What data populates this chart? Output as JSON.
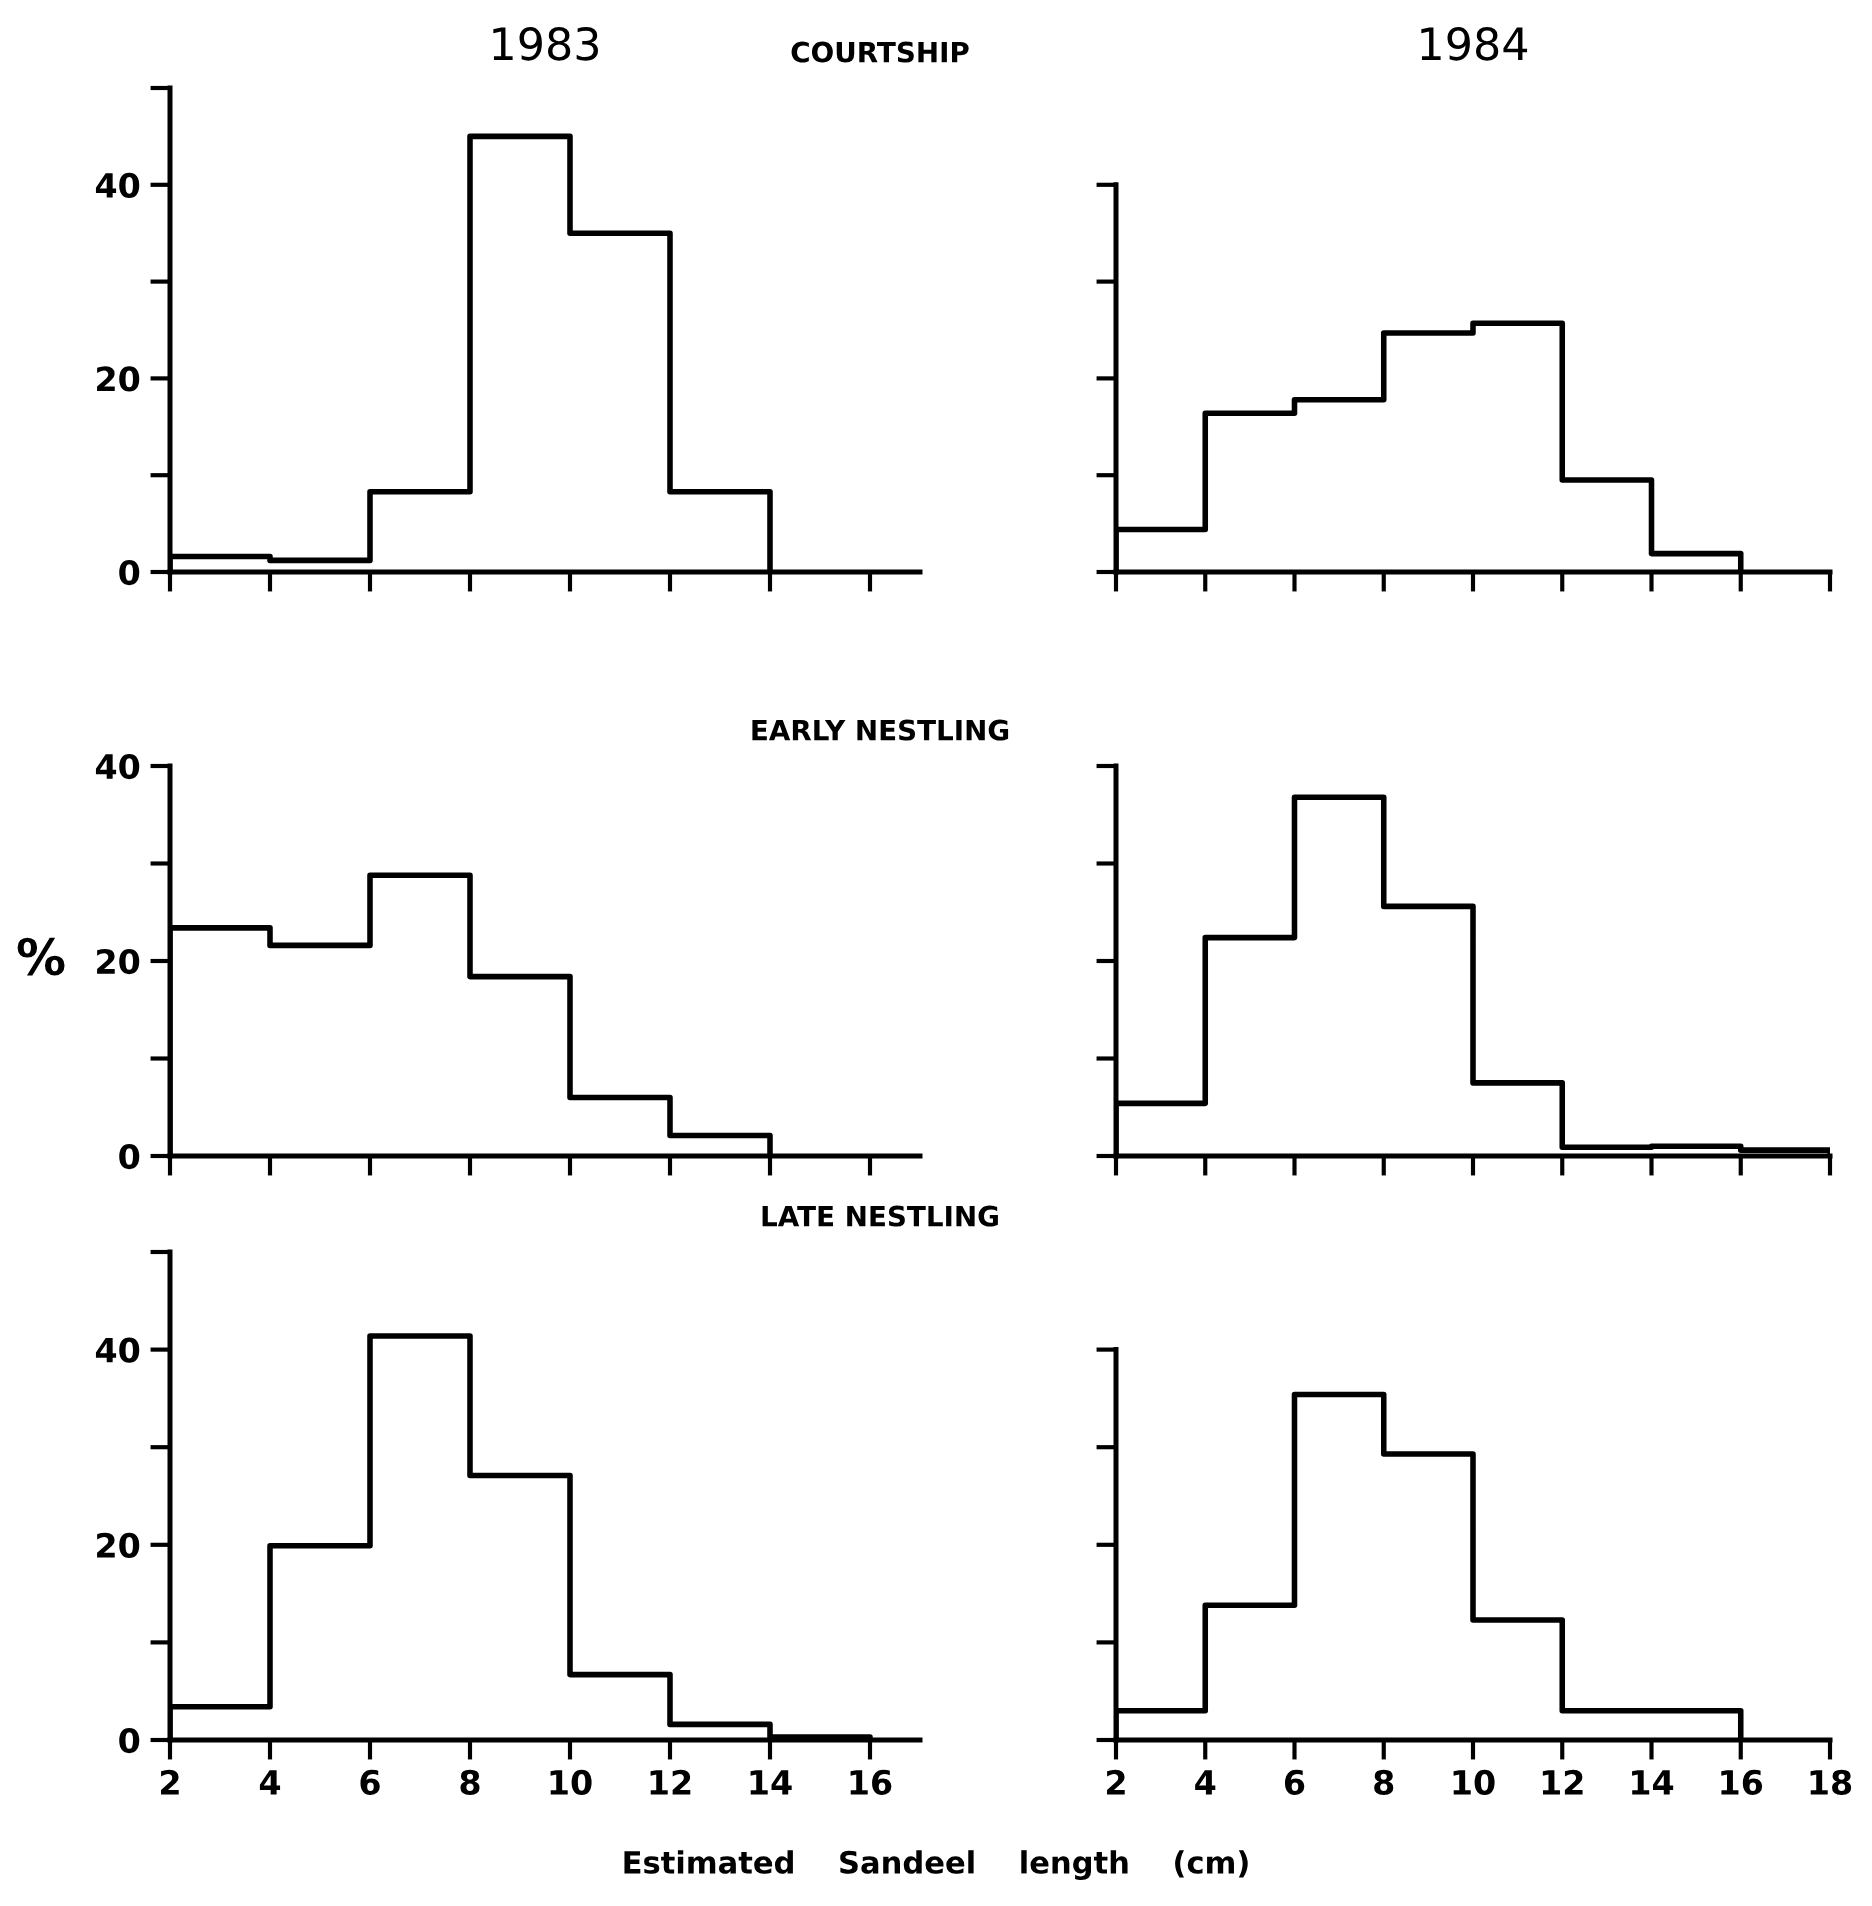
{
  "chart_data": [
    {
      "type": "histogram",
      "title": "1983",
      "subtitle": "COURTSHIP",
      "bins": [
        2,
        4,
        6,
        8,
        10,
        12,
        14
      ],
      "values": [
        1.6,
        1.2,
        8.3,
        45,
        35,
        8.3
      ],
      "color": "#000000",
      "xlim": [
        2,
        17
      ],
      "xticks": [
        {
          "value": 2,
          "label": null
        },
        {
          "value": 4,
          "label": null
        },
        {
          "value": 6,
          "label": null
        },
        {
          "value": 8,
          "label": null
        },
        {
          "value": 10,
          "label": null
        },
        {
          "value": 12,
          "label": null
        },
        {
          "value": 14,
          "label": null
        },
        {
          "value": 16,
          "label": null
        }
      ],
      "ylim": [
        0,
        50
      ],
      "yticks": [
        0,
        {
          "value": 10,
          "label": null
        },
        20,
        {
          "value": 30,
          "label": null
        },
        40,
        {
          "value": 50,
          "label": null
        }
      ],
      "tick_labels": "y",
      "grid": false,
      "legend": false
    },
    {
      "type": "histogram",
      "title": "1984",
      "bins": [
        2,
        4,
        6,
        8,
        10,
        12,
        14,
        16
      ],
      "values": [
        4.4,
        16.4,
        17.8,
        24.7,
        25.7,
        9.5,
        1.9
      ],
      "color": "#000000",
      "xlim": [
        2,
        18
      ],
      "xticks": [
        {
          "value": 2,
          "label": null
        },
        {
          "value": 4,
          "label": null
        },
        {
          "value": 6,
          "label": null
        },
        {
          "value": 8,
          "label": null
        },
        {
          "value": 10,
          "label": null
        },
        {
          "value": 12,
          "label": null
        },
        {
          "value": 14,
          "label": null
        },
        {
          "value": 16,
          "label": null
        },
        {
          "value": 18,
          "label": null
        }
      ],
      "ylim": [
        0,
        40
      ],
      "yticks": [
        {
          "value": 0,
          "label": null
        },
        {
          "value": 10,
          "label": null
        },
        {
          "value": 20,
          "label": null
        },
        {
          "value": 30,
          "label": null
        },
        {
          "value": 40,
          "label": null
        }
      ],
      "tick_labels": false,
      "grid": false,
      "legend": false
    },
    {
      "type": "histogram",
      "subtitle": "EARLY NESTLING",
      "ylabel": "%",
      "bins": [
        2,
        4,
        6,
        8,
        10,
        12,
        14
      ],
      "values": [
        23.4,
        21.6,
        28.8,
        18.4,
        6.0,
        2.1
      ],
      "color": "#000000",
      "xlim": [
        2,
        17
      ],
      "xticks": [
        {
          "value": 2,
          "label": null
        },
        {
          "value": 4,
          "label": null
        },
        {
          "value": 6,
          "label": null
        },
        {
          "value": 8,
          "label": null
        },
        {
          "value": 10,
          "label": null
        },
        {
          "value": 12,
          "label": null
        },
        {
          "value": 14,
          "label": null
        },
        {
          "value": 16,
          "label": null
        }
      ],
      "ylim": [
        0,
        40
      ],
      "yticks": [
        0,
        {
          "value": 10,
          "label": null
        },
        20,
        {
          "value": 30,
          "label": null
        },
        40
      ],
      "tick_labels": "y",
      "grid": false,
      "legend": false
    },
    {
      "type": "histogram",
      "bins": [
        2,
        4,
        6,
        8,
        10,
        12,
        14,
        16,
        18
      ],
      "values": [
        5.4,
        22.4,
        36.8,
        25.6,
        7.5,
        0.9,
        1.0,
        0.6
      ],
      "color": "#000000",
      "xlim": [
        2,
        18
      ],
      "xticks": [
        {
          "value": 2,
          "label": null
        },
        {
          "value": 4,
          "label": null
        },
        {
          "value": 6,
          "label": null
        },
        {
          "value": 8,
          "label": null
        },
        {
          "value": 10,
          "label": null
        },
        {
          "value": 12,
          "label": null
        },
        {
          "value": 14,
          "label": null
        },
        {
          "value": 16,
          "label": null
        },
        {
          "value": 18,
          "label": null
        }
      ],
      "ylim": [
        0,
        40
      ],
      "yticks": [
        {
          "value": 0,
          "label": null
        },
        {
          "value": 10,
          "label": null
        },
        {
          "value": 20,
          "label": null
        },
        {
          "value": 30,
          "label": null
        },
        {
          "value": 40,
          "label": null
        }
      ],
      "tick_labels": false,
      "grid": false,
      "legend": false
    },
    {
      "type": "histogram",
      "subtitle": "LATE NESTLING",
      "bins": [
        2,
        4,
        6,
        8,
        10,
        12,
        14,
        16
      ],
      "values": [
        3.4,
        19.9,
        41.4,
        27.1,
        6.7,
        1.6,
        0.3
      ],
      "color": "#000000",
      "xlim": [
        2,
        17
      ],
      "xticks": [
        2,
        4,
        6,
        8,
        10,
        12,
        14,
        16
      ],
      "ylim": [
        0,
        50
      ],
      "yticks": [
        0,
        {
          "value": 10,
          "label": null
        },
        20,
        {
          "value": 30,
          "label": null
        },
        40,
        {
          "value": 50,
          "label": null
        }
      ],
      "grid": false,
      "legend": false
    },
    {
      "type": "histogram",
      "xlabel": "Estimated    Sandeel    length    (cm)",
      "bins": [
        2,
        4,
        6,
        8,
        10,
        12,
        14,
        16
      ],
      "values": [
        3.0,
        13.8,
        35.4,
        29.3,
        12.3,
        3.0,
        3.0
      ],
      "color": "#000000",
      "xlim": [
        2,
        18
      ],
      "xticks": [
        2,
        4,
        6,
        8,
        10,
        12,
        14,
        16,
        18
      ],
      "ylim": [
        0,
        40
      ],
      "yticks": [
        {
          "value": 0,
          "label": null
        },
        {
          "value": 10,
          "label": null
        },
        {
          "value": 20,
          "label": null
        },
        {
          "value": 30,
          "label": null
        },
        {
          "value": 40,
          "label": null
        }
      ],
      "tick_labels": "x",
      "grid": false,
      "legend": false
    }
  ]
}
